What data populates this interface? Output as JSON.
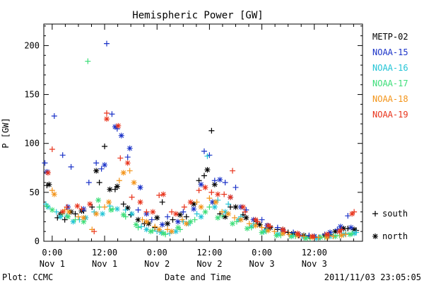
{
  "chart_data": {
    "type": "scatter",
    "title": "Hemispheric Power [GW]",
    "xlabel": "Date and Time",
    "ylabel": "P [GW]",
    "xlim": [
      -0.08,
      2.96
    ],
    "ylim": [
      0,
      222
    ],
    "grid": false,
    "legend_position": "right",
    "y_ticks": [
      {
        "value": 0,
        "label": "0"
      },
      {
        "value": 50,
        "label": "50"
      },
      {
        "value": 100,
        "label": "100"
      },
      {
        "value": 150,
        "label": "150"
      },
      {
        "value": 200,
        "label": "200"
      }
    ],
    "x_ticks": [
      {
        "value": 0.0,
        "time": "0:00",
        "date": "Nov 1"
      },
      {
        "value": 0.5,
        "time": "12:00",
        "date": "Nov 1"
      },
      {
        "value": 1.0,
        "time": "0:00",
        "date": "Nov 2"
      },
      {
        "value": 1.5,
        "time": "12:00",
        "date": "Nov 2"
      },
      {
        "value": 2.0,
        "time": "0:00",
        "date": "Nov 3"
      },
      {
        "value": 2.5,
        "time": "12:00",
        "date": "Nov 3"
      }
    ],
    "marker_legend": [
      {
        "symbol": "+",
        "label": "south"
      },
      {
        "symbol": "*",
        "label": "north"
      }
    ],
    "series": [
      {
        "name": "METP-02",
        "color": "#000000",
        "south": [
          [
            -0.05,
            57
          ],
          [
            0.05,
            24
          ],
          [
            0.12,
            22
          ],
          [
            0.22,
            28
          ],
          [
            0.3,
            31
          ],
          [
            0.38,
            35
          ],
          [
            0.45,
            60
          ],
          [
            0.5,
            97
          ],
          [
            0.6,
            53
          ],
          [
            0.68,
            38
          ],
          [
            0.75,
            27
          ],
          [
            0.88,
            18
          ],
          [
            0.98,
            14
          ],
          [
            1.05,
            40
          ],
          [
            1.15,
            22
          ],
          [
            1.28,
            25
          ],
          [
            1.4,
            62
          ],
          [
            1.45,
            67
          ],
          [
            1.52,
            113
          ],
          [
            1.6,
            28
          ],
          [
            1.7,
            35
          ],
          [
            1.82,
            27
          ],
          [
            1.95,
            20
          ],
          [
            2.05,
            13
          ],
          [
            2.15,
            12
          ],
          [
            2.25,
            9
          ],
          [
            2.35,
            6
          ],
          [
            2.45,
            5
          ],
          [
            2.55,
            4
          ],
          [
            2.65,
            7
          ],
          [
            2.75,
            12
          ],
          [
            2.82,
            13
          ],
          [
            2.9,
            11
          ]
        ],
        "north": [
          [
            -0.03,
            58
          ],
          [
            0.08,
            28
          ],
          [
            0.18,
            30
          ],
          [
            0.28,
            31
          ],
          [
            0.42,
            72
          ],
          [
            0.55,
            53
          ],
          [
            0.62,
            56
          ],
          [
            0.72,
            34
          ],
          [
            0.82,
            22
          ],
          [
            0.92,
            18
          ],
          [
            1.0,
            24
          ],
          [
            1.1,
            18
          ],
          [
            1.22,
            27
          ],
          [
            1.35,
            38
          ],
          [
            1.48,
            73
          ],
          [
            1.55,
            58
          ],
          [
            1.65,
            25
          ],
          [
            1.75,
            35
          ],
          [
            1.85,
            24
          ],
          [
            1.98,
            17
          ],
          [
            2.08,
            14
          ],
          [
            2.2,
            12
          ],
          [
            2.3,
            8
          ],
          [
            2.4,
            6
          ],
          [
            2.5,
            5
          ],
          [
            2.6,
            6
          ],
          [
            2.7,
            10
          ],
          [
            2.78,
            13
          ],
          [
            2.88,
            12
          ]
        ]
      },
      {
        "name": "NOAA-15",
        "color": "#1a32c8",
        "south": [
          [
            -0.07,
            80
          ],
          [
            0.02,
            128
          ],
          [
            0.1,
            88
          ],
          [
            0.18,
            76
          ],
          [
            0.35,
            60
          ],
          [
            0.42,
            80
          ],
          [
            0.47,
            74
          ],
          [
            0.52,
            202
          ],
          [
            0.57,
            130
          ],
          [
            0.62,
            115
          ],
          [
            0.72,
            86
          ],
          [
            0.82,
            32
          ],
          [
            0.95,
            22
          ],
          [
            1.1,
            25
          ],
          [
            1.25,
            30
          ],
          [
            1.45,
            92
          ],
          [
            1.5,
            88
          ],
          [
            1.55,
            62
          ],
          [
            1.65,
            60
          ],
          [
            1.75,
            55
          ],
          [
            1.85,
            32
          ],
          [
            2.0,
            22
          ],
          [
            2.15,
            14
          ],
          [
            2.3,
            9
          ],
          [
            2.45,
            6
          ],
          [
            2.6,
            7
          ],
          [
            2.72,
            12
          ],
          [
            2.82,
            26
          ]
        ],
        "north": [
          [
            -0.05,
            71
          ],
          [
            0.15,
            35
          ],
          [
            0.3,
            33
          ],
          [
            0.5,
            78
          ],
          [
            0.6,
            117
          ],
          [
            0.66,
            108
          ],
          [
            0.74,
            95
          ],
          [
            0.84,
            55
          ],
          [
            0.9,
            28
          ],
          [
            1.05,
            17
          ],
          [
            1.2,
            20
          ],
          [
            1.35,
            33
          ],
          [
            1.42,
            58
          ],
          [
            1.53,
            40
          ],
          [
            1.6,
            63
          ],
          [
            1.7,
            45
          ],
          [
            1.8,
            35
          ],
          [
            1.92,
            22
          ],
          [
            2.05,
            16
          ],
          [
            2.2,
            11
          ],
          [
            2.35,
            7
          ],
          [
            2.5,
            5
          ],
          [
            2.65,
            9
          ],
          [
            2.75,
            15
          ],
          [
            2.85,
            14
          ]
        ]
      },
      {
        "name": "NOAA-16",
        "color": "#22c4d6",
        "south": [
          [
            -0.06,
            38
          ],
          [
            0.04,
            30
          ],
          [
            0.14,
            26
          ],
          [
            0.26,
            22
          ],
          [
            0.4,
            30
          ],
          [
            0.55,
            36
          ],
          [
            0.7,
            32
          ],
          [
            0.85,
            15
          ],
          [
            1.0,
            10
          ],
          [
            1.12,
            8
          ],
          [
            1.25,
            20
          ],
          [
            1.38,
            28
          ],
          [
            1.48,
            87
          ],
          [
            1.58,
            42
          ],
          [
            1.68,
            38
          ],
          [
            1.8,
            25
          ],
          [
            1.92,
            18
          ],
          [
            2.05,
            12
          ],
          [
            2.18,
            8
          ],
          [
            2.3,
            6
          ],
          [
            2.42,
            4
          ],
          [
            2.55,
            4
          ],
          [
            2.68,
            6
          ],
          [
            2.8,
            8
          ],
          [
            2.9,
            9
          ]
        ],
        "north": [
          [
            -0.04,
            35
          ],
          [
            0.08,
            25
          ],
          [
            0.2,
            20
          ],
          [
            0.32,
            24
          ],
          [
            0.48,
            28
          ],
          [
            0.62,
            33
          ],
          [
            0.76,
            28
          ],
          [
            0.9,
            12
          ],
          [
            1.04,
            9
          ],
          [
            1.18,
            10
          ],
          [
            1.3,
            18
          ],
          [
            1.42,
            25
          ],
          [
            1.55,
            35
          ],
          [
            1.65,
            30
          ],
          [
            1.78,
            22
          ],
          [
            1.9,
            15
          ],
          [
            2.02,
            10
          ],
          [
            2.15,
            7
          ],
          [
            2.28,
            5
          ],
          [
            2.4,
            4
          ],
          [
            2.52,
            3
          ],
          [
            2.65,
            5
          ],
          [
            2.78,
            7
          ],
          [
            2.88,
            8
          ]
        ]
      },
      {
        "name": "NOAA-17",
        "color": "#3cde78",
        "south": [
          [
            -0.05,
            36
          ],
          [
            0.1,
            28
          ],
          [
            0.22,
            22
          ],
          [
            0.34,
            184
          ],
          [
            0.45,
            35
          ],
          [
            0.58,
            33
          ],
          [
            0.7,
            25
          ],
          [
            0.82,
            14
          ],
          [
            0.96,
            11
          ],
          [
            1.08,
            7
          ],
          [
            1.22,
            12
          ],
          [
            1.36,
            22
          ],
          [
            1.5,
            35
          ],
          [
            1.62,
            26
          ],
          [
            1.76,
            20
          ],
          [
            1.9,
            14
          ],
          [
            2.04,
            10
          ],
          [
            2.18,
            6
          ],
          [
            2.32,
            5
          ],
          [
            2.46,
            3
          ],
          [
            2.6,
            4
          ],
          [
            2.74,
            6
          ],
          [
            2.86,
            8
          ]
        ],
        "north": [
          [
            0.0,
            32
          ],
          [
            0.15,
            25
          ],
          [
            0.3,
            20
          ],
          [
            0.44,
            42
          ],
          [
            0.56,
            32
          ],
          [
            0.68,
            27
          ],
          [
            0.8,
            17
          ],
          [
            0.94,
            10
          ],
          [
            1.06,
            8
          ],
          [
            1.2,
            14
          ],
          [
            1.32,
            20
          ],
          [
            1.46,
            30
          ],
          [
            1.58,
            24
          ],
          [
            1.72,
            18
          ],
          [
            1.86,
            13
          ],
          [
            2.0,
            9
          ],
          [
            2.14,
            6
          ],
          [
            2.28,
            5
          ],
          [
            2.42,
            3
          ],
          [
            2.56,
            4
          ],
          [
            2.7,
            5
          ],
          [
            2.84,
            7
          ]
        ]
      },
      {
        "name": "NOAA-18",
        "color": "#f39419",
        "south": [
          [
            0.0,
            52
          ],
          [
            0.12,
            32
          ],
          [
            0.25,
            25
          ],
          [
            0.38,
            12
          ],
          [
            0.5,
            35
          ],
          [
            0.64,
            62
          ],
          [
            0.74,
            72
          ],
          [
            0.86,
            22
          ],
          [
            0.98,
            15
          ],
          [
            1.1,
            12
          ],
          [
            1.24,
            22
          ],
          [
            1.38,
            40
          ],
          [
            1.5,
            44
          ],
          [
            1.62,
            30
          ],
          [
            1.74,
            24
          ],
          [
            1.88,
            18
          ],
          [
            2.0,
            14
          ],
          [
            2.12,
            10
          ],
          [
            2.26,
            7
          ],
          [
            2.4,
            5
          ],
          [
            2.54,
            4
          ],
          [
            2.68,
            5
          ],
          [
            2.8,
            7
          ]
        ],
        "north": [
          [
            0.02,
            48
          ],
          [
            0.16,
            30
          ],
          [
            0.3,
            24
          ],
          [
            0.42,
            28
          ],
          [
            0.54,
            40
          ],
          [
            0.68,
            70
          ],
          [
            0.78,
            60
          ],
          [
            0.9,
            20
          ],
          [
            1.02,
            12
          ],
          [
            1.14,
            10
          ],
          [
            1.28,
            18
          ],
          [
            1.42,
            35
          ],
          [
            1.56,
            40
          ],
          [
            1.68,
            28
          ],
          [
            1.8,
            22
          ],
          [
            1.94,
            16
          ],
          [
            2.06,
            11
          ],
          [
            2.2,
            8
          ],
          [
            2.34,
            6
          ],
          [
            2.48,
            4
          ],
          [
            2.62,
            4
          ],
          [
            2.76,
            6
          ]
        ]
      },
      {
        "name": "NOAA-19",
        "color": "#e8331b",
        "south": [
          [
            0.0,
            94
          ],
          [
            0.14,
            35
          ],
          [
            0.28,
            33
          ],
          [
            0.4,
            10
          ],
          [
            0.52,
            131
          ],
          [
            0.65,
            85
          ],
          [
            0.76,
            45
          ],
          [
            0.9,
            30
          ],
          [
            1.02,
            47
          ],
          [
            1.14,
            30
          ],
          [
            1.26,
            35
          ],
          [
            1.4,
            52
          ],
          [
            1.52,
            50
          ],
          [
            1.64,
            48
          ],
          [
            1.72,
            72
          ],
          [
            1.84,
            30
          ],
          [
            1.96,
            20
          ],
          [
            2.08,
            15
          ],
          [
            2.22,
            10
          ],
          [
            2.36,
            6
          ],
          [
            2.5,
            4
          ],
          [
            2.64,
            6
          ],
          [
            2.76,
            12
          ],
          [
            2.88,
            30
          ]
        ],
        "north": [
          [
            -0.04,
            70
          ],
          [
            0.1,
            30
          ],
          [
            0.24,
            36
          ],
          [
            0.36,
            38
          ],
          [
            0.52,
            125
          ],
          [
            0.63,
            118
          ],
          [
            0.72,
            80
          ],
          [
            0.84,
            40
          ],
          [
            0.96,
            30
          ],
          [
            1.06,
            48
          ],
          [
            1.18,
            28
          ],
          [
            1.32,
            40
          ],
          [
            1.46,
            55
          ],
          [
            1.58,
            48
          ],
          [
            1.7,
            45
          ],
          [
            1.82,
            35
          ],
          [
            1.94,
            22
          ],
          [
            2.06,
            16
          ],
          [
            2.2,
            12
          ],
          [
            2.34,
            8
          ],
          [
            2.48,
            5
          ],
          [
            2.62,
            7
          ],
          [
            2.74,
            10
          ],
          [
            2.86,
            28
          ]
        ]
      }
    ]
  },
  "footer": {
    "plot_credit": "Plot: CCMC",
    "timestamp": "2011/11/03 23:05:05"
  }
}
